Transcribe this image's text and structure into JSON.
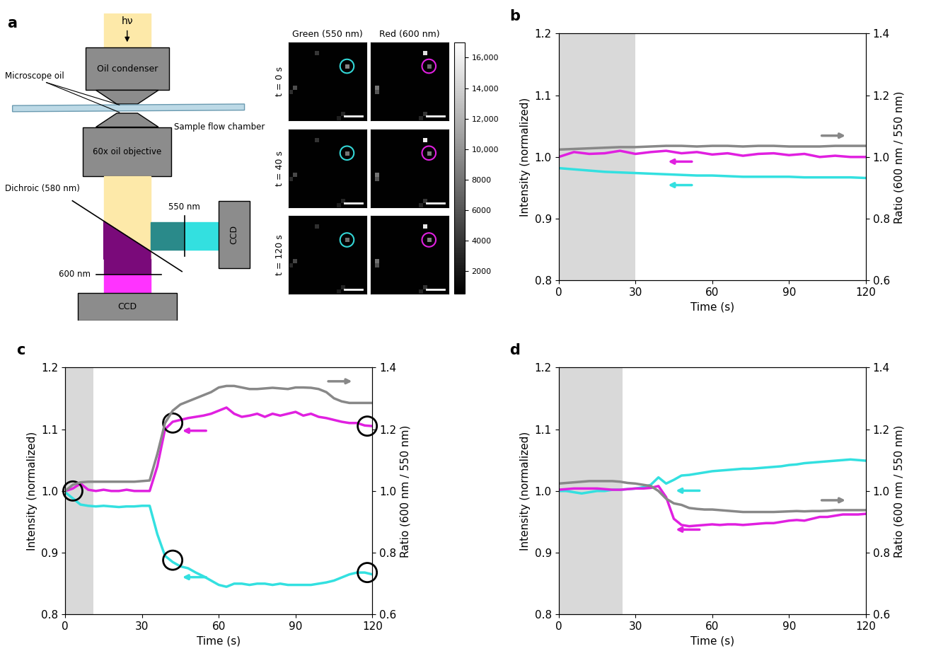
{
  "diagram": {
    "title": "a",
    "light": "hν",
    "condenser": "Oil condenser",
    "chamber": "Sample flow chamber",
    "oil": "Microscope oil",
    "objective": "60x oil objective",
    "dichroic": "Dichroic (580 nm)",
    "filter_green": "550 nm",
    "filter_red": "600 nm",
    "camera_green": "CCD",
    "camera_red": "CCD"
  },
  "images": {
    "rows": [
      "t = 0 s",
      "t = 40 s",
      "t = 120 s"
    ],
    "pixels": [
      18,
      18
    ],
    "background": 600,
    "colorbar": {
      "range": [
        500,
        17000
      ],
      "ticks": [
        2000,
        4000,
        6000,
        8000,
        {
          "value": 10000,
          "label": "10,000"
        },
        {
          "value": 12000,
          "label": "12,000"
        },
        {
          "value": 14000,
          "label": "14,000"
        },
        {
          "value": 16000,
          "label": "16,000"
        }
      ]
    },
    "columns": [
      {
        "label": "Green (550 nm)",
        "color": "#33d6d6",
        "frames": [
          {
            "circled": [
              13,
              5
            ],
            "spots": [
              [
                13,
                5,
                9000
              ],
              [
                6,
                2,
                4000
              ],
              [
                1,
                10,
                5500
              ],
              [
                0,
                11,
                3500
              ],
              [
                12,
                16,
                3000
              ],
              [
                11,
                17,
                2500
              ]
            ]
          },
          {
            "circled": [
              13,
              5
            ],
            "spots": [
              [
                13,
                5,
                8000
              ],
              [
                6,
                2,
                3800
              ],
              [
                1,
                10,
                5200
              ],
              [
                0,
                11,
                3300
              ],
              [
                12,
                16,
                2900
              ],
              [
                11,
                17,
                2400
              ]
            ]
          },
          {
            "circled": [
              13,
              5
            ],
            "spots": [
              [
                13,
                5,
                7500
              ],
              [
                6,
                2,
                3600
              ],
              [
                1,
                10,
                5000
              ],
              [
                0,
                11,
                3200
              ],
              [
                12,
                16,
                2800
              ],
              [
                11,
                17,
                2300
              ]
            ]
          }
        ]
      },
      {
        "label": "Red (600 nm)",
        "color": "#e020e0",
        "frames": [
          {
            "circled": [
              13,
              5
            ],
            "spots": [
              [
                12,
                2,
                15000
              ],
              [
                13,
                5,
                7500
              ],
              [
                1,
                10,
                8000
              ],
              [
                1,
                11,
                6000
              ],
              [
                12,
                16,
                4000
              ],
              [
                11,
                17,
                3000
              ]
            ]
          },
          {
            "circled": [
              13,
              5
            ],
            "spots": [
              [
                12,
                2,
                16000
              ],
              [
                13,
                5,
                8500
              ],
              [
                1,
                10,
                8000
              ],
              [
                1,
                11,
                6000
              ],
              [
                12,
                16,
                4000
              ],
              [
                11,
                17,
                3000
              ]
            ]
          },
          {
            "circled": [
              13,
              5
            ],
            "spots": [
              [
                12,
                2,
                15500
              ],
              [
                13,
                5,
                8800
              ],
              [
                1,
                10,
                7800
              ],
              [
                1,
                11,
                5800
              ],
              [
                12,
                16,
                3900
              ],
              [
                11,
                17,
                2900
              ]
            ]
          }
        ]
      }
    ]
  },
  "chart_data": [
    {
      "type": "line",
      "title": "b",
      "x_label": "Time (s)",
      "y_label": "Intensity (normalized)",
      "y2_label": "Ratio (600 nm / 550 nm)",
      "xlim": [
        0,
        120
      ],
      "xticks": [
        0,
        30,
        60,
        90,
        120
      ],
      "ylim": [
        0.8,
        1.2
      ],
      "yticks": [
        0.8,
        0.9,
        1.0,
        1.1,
        1.2
      ],
      "y2lim": [
        0.6,
        1.4
      ],
      "y2ticks": [
        0.6,
        0.8,
        1.0,
        1.2,
        1.4
      ],
      "shaded": [
        0,
        30
      ],
      "circled_points": [],
      "x": [
        0,
        6,
        12,
        18,
        24,
        30,
        36,
        42,
        48,
        54,
        60,
        66,
        72,
        78,
        84,
        90,
        96,
        102,
        108,
        114,
        120
      ],
      "series": [
        {
          "color": "#e020e0",
          "axis": "y",
          "values": [
            1.0,
            1.008,
            1.005,
            1.006,
            1.01,
            1.005,
            1.008,
            1.01,
            1.006,
            1.008,
            1.004,
            1.006,
            1.002,
            1.005,
            1.006,
            1.003,
            1.005,
            1.0,
            1.002,
            1.0,
            1.0
          ]
        },
        {
          "color": "#33e0e0",
          "axis": "y",
          "values": [
            0.982,
            0.98,
            0.978,
            0.976,
            0.975,
            0.974,
            0.973,
            0.972,
            0.971,
            0.97,
            0.97,
            0.969,
            0.968,
            0.968,
            0.968,
            0.968,
            0.967,
            0.967,
            0.967,
            0.967,
            0.966
          ]
        },
        {
          "color": "#888888",
          "axis": "y2",
          "values": [
            1.024,
            1.026,
            1.028,
            1.03,
            1.032,
            1.032,
            1.034,
            1.036,
            1.036,
            1.034,
            1.036,
            1.036,
            1.034,
            1.036,
            1.036,
            1.034,
            1.034,
            1.034,
            1.036,
            1.036,
            1.036
          ]
        }
      ]
    },
    {
      "type": "line",
      "title": "c",
      "x_label": "Time (s)",
      "y_label": "Intensity (normalized)",
      "y2_label": "Ratio (600 nm / 550 nm)",
      "xlim": [
        0,
        120
      ],
      "xticks": [
        0,
        30,
        60,
        90,
        120
      ],
      "ylim": [
        0.8,
        1.2
      ],
      "yticks": [
        0.8,
        0.9,
        1.0,
        1.1,
        1.2
      ],
      "y2lim": [
        0.6,
        1.4
      ],
      "y2ticks": [
        0.6,
        0.8,
        1.0,
        1.2,
        1.4
      ],
      "shaded": [
        0,
        11
      ],
      "circled_points": [
        [
          3,
          1.0
        ],
        [
          42,
          1.11
        ],
        [
          118,
          1.105
        ],
        [
          42,
          0.888
        ],
        [
          118,
          0.868
        ]
      ],
      "x": [
        0,
        3,
        6,
        9,
        12,
        15,
        18,
        21,
        24,
        27,
        30,
        33,
        36,
        39,
        42,
        45,
        48,
        51,
        54,
        57,
        60,
        63,
        66,
        69,
        72,
        75,
        78,
        81,
        84,
        87,
        90,
        93,
        96,
        99,
        102,
        105,
        108,
        111,
        114,
        117,
        120
      ],
      "series": [
        {
          "color": "#e020e0",
          "axis": "y",
          "values": [
            1.0,
            1.004,
            1.012,
            1.002,
            1.0,
            1.002,
            1.0,
            1.0,
            1.002,
            1.0,
            1.0,
            1.0,
            1.04,
            1.1,
            1.112,
            1.115,
            1.118,
            1.12,
            1.122,
            1.125,
            1.13,
            1.135,
            1.125,
            1.12,
            1.122,
            1.125,
            1.12,
            1.125,
            1.122,
            1.125,
            1.128,
            1.122,
            1.125,
            1.12,
            1.118,
            1.115,
            1.112,
            1.11,
            1.11,
            1.106,
            1.105
          ]
        },
        {
          "color": "#33e0e0",
          "axis": "y",
          "values": [
            0.998,
            0.988,
            0.978,
            0.976,
            0.975,
            0.976,
            0.975,
            0.974,
            0.975,
            0.975,
            0.976,
            0.976,
            0.93,
            0.895,
            0.885,
            0.878,
            0.875,
            0.868,
            0.862,
            0.855,
            0.848,
            0.845,
            0.85,
            0.85,
            0.848,
            0.85,
            0.85,
            0.848,
            0.85,
            0.848,
            0.848,
            0.848,
            0.848,
            0.85,
            0.852,
            0.855,
            0.86,
            0.865,
            0.868,
            0.868,
            0.865
          ]
        },
        {
          "color": "#888888",
          "axis": "y2",
          "values": [
            1.0,
            1.02,
            1.028,
            1.03,
            1.03,
            1.03,
            1.03,
            1.03,
            1.03,
            1.03,
            1.032,
            1.034,
            1.12,
            1.22,
            1.26,
            1.28,
            1.29,
            1.3,
            1.31,
            1.32,
            1.335,
            1.34,
            1.34,
            1.335,
            1.33,
            1.33,
            1.332,
            1.334,
            1.332,
            1.33,
            1.335,
            1.335,
            1.334,
            1.33,
            1.32,
            1.3,
            1.29,
            1.285,
            1.285,
            1.285,
            1.285
          ]
        }
      ]
    },
    {
      "type": "line",
      "title": "d",
      "x_label": "Time (s)",
      "y_label": "Intensity (normalized)",
      "y2_label": "Ratio (600 nm / 550 nm)",
      "xlim": [
        0,
        120
      ],
      "xticks": [
        0,
        30,
        60,
        90,
        120
      ],
      "ylim": [
        0.8,
        1.2
      ],
      "yticks": [
        0.8,
        0.9,
        1.0,
        1.1,
        1.2
      ],
      "y2lim": [
        0.6,
        1.4
      ],
      "y2ticks": [
        0.6,
        0.8,
        1.0,
        1.2,
        1.4
      ],
      "shaded": [
        0,
        25
      ],
      "circled_points": [],
      "x": [
        0,
        3,
        6,
        9,
        12,
        15,
        18,
        21,
        24,
        27,
        30,
        33,
        36,
        39,
        42,
        45,
        48,
        51,
        54,
        57,
        60,
        63,
        66,
        69,
        72,
        75,
        78,
        81,
        84,
        87,
        90,
        93,
        96,
        99,
        102,
        105,
        108,
        111,
        114,
        117,
        120
      ],
      "series": [
        {
          "color": "#33e0e0",
          "axis": "y",
          "values": [
            1.0,
            1.0,
            0.998,
            0.996,
            0.998,
            1.0,
            1.0,
            1.002,
            1.002,
            1.003,
            1.004,
            1.006,
            1.01,
            1.022,
            1.012,
            1.018,
            1.025,
            1.026,
            1.028,
            1.03,
            1.032,
            1.033,
            1.034,
            1.035,
            1.036,
            1.036,
            1.037,
            1.038,
            1.039,
            1.04,
            1.042,
            1.043,
            1.045,
            1.046,
            1.047,
            1.048,
            1.049,
            1.05,
            1.051,
            1.05,
            1.049
          ]
        },
        {
          "color": "#e020e0",
          "axis": "y",
          "values": [
            1.002,
            1.003,
            1.004,
            1.004,
            1.004,
            1.004,
            1.003,
            1.002,
            1.002,
            1.003,
            1.004,
            1.004,
            1.005,
            1.008,
            0.99,
            0.955,
            0.945,
            0.943,
            0.944,
            0.945,
            0.946,
            0.945,
            0.946,
            0.946,
            0.945,
            0.946,
            0.947,
            0.948,
            0.948,
            0.95,
            0.952,
            0.953,
            0.952,
            0.955,
            0.958,
            0.958,
            0.96,
            0.962,
            0.962,
            0.962,
            0.963
          ]
        },
        {
          "color": "#888888",
          "axis": "y2",
          "values": [
            1.024,
            1.026,
            1.028,
            1.03,
            1.032,
            1.032,
            1.032,
            1.032,
            1.03,
            1.026,
            1.024,
            1.02,
            1.016,
            1.0,
            0.975,
            0.96,
            0.955,
            0.945,
            0.942,
            0.94,
            0.94,
            0.938,
            0.936,
            0.934,
            0.932,
            0.932,
            0.932,
            0.932,
            0.932,
            0.933,
            0.934,
            0.935,
            0.934,
            0.935,
            0.935,
            0.936,
            0.938,
            0.938,
            0.938,
            0.938,
            0.938
          ]
        }
      ]
    }
  ]
}
